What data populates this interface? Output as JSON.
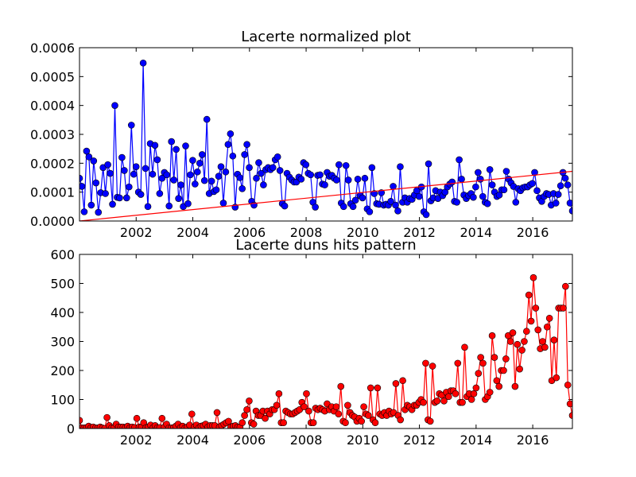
{
  "chart_data": [
    {
      "type": "line",
      "title": "Lacerte normalized plot",
      "xlabel": "",
      "ylabel": "",
      "xlim": [
        2000.0,
        2017.4
      ],
      "ylim": [
        0,
        0.0006
      ],
      "x_ticks": [
        "2002",
        "2004",
        "2006",
        "2008",
        "2010",
        "2012",
        "2014",
        "2016"
      ],
      "y_ticks": [
        "0.0000",
        "0.0001",
        "0.0002",
        "0.0003",
        "0.0004",
        "0.0005",
        "0.0006"
      ],
      "grid": false,
      "series": [
        {
          "color": "#0000ff",
          "marker": "circle",
          "values": [
            0.000148,
            0.00012,
            3.2e-05,
            0.000242,
            0.000222,
            5.5e-05,
            0.000208,
            0.000132,
            3e-05,
            9.8e-05,
            0.000185,
            9.5e-05,
            0.000195,
            0.000165,
            5.8e-05,
            0.0004,
            8.2e-05,
            8e-05,
            0.00022,
            0.000175,
            8e-05,
            0.000118,
            0.000332,
            0.000162,
            0.000188,
            0.0001,
            9.2e-05,
            0.000547,
            0.000182,
            5e-05,
            0.000268,
            0.000162,
            0.000262,
            0.000212,
            9.5e-05,
            0.000148,
            0.000168,
            0.00016,
            5.2e-05,
            0.000275,
            0.000142,
            0.000248,
            7.8e-05,
            0.000125,
            5e-05,
            0.00026,
            6e-05,
            0.00016,
            0.00021,
            0.000128,
            0.00017,
            0.0002,
            0.00023,
            0.00014,
            0.000352,
            9.5e-05,
            0.000138,
            0.000102,
            0.000108,
            0.000155,
            0.000188,
            6.2e-05,
            0.00017,
            0.000265,
            0.000302,
            0.000225,
            4.8e-05,
            0.000162,
            0.00015,
            0.000112,
            0.00023,
            0.000265,
            0.000185,
            6.8e-05,
            5.5e-05,
            0.000148,
            0.000202,
            0.000165,
            0.000125,
            0.000178,
            0.000185,
            0.000178,
            0.000185,
            0.000212,
            0.000222,
            0.000175,
            6e-05,
            5.2e-05,
            0.000165,
            0.000152,
            0.000142,
            0.000135,
            0.000135,
            0.000152,
            0.000145,
            0.000202,
            0.000195,
            0.000165,
            0.00016,
            6.5e-05,
            4.8e-05,
            0.000158,
            0.00016,
            0.000128,
            0.000125,
            0.000168,
            0.000155,
            0.000158,
            0.000148,
            0.000142,
            0.000195,
            6.2e-05,
            5e-05,
            0.000192,
            0.000142,
            6e-05,
            5e-05,
            7.2e-05,
            0.000145,
            8.8e-05,
            8e-05,
            0.000148,
            4.2e-05,
            3.2e-05,
            0.000185,
            9.5e-05,
            6e-05,
            5.8e-05,
            9.8e-05,
            5.5e-05,
            5.8e-05,
            5.5e-05,
            6.8e-05,
            0.00012,
            5.5e-05,
            3.5e-05,
            0.000188,
            6.5e-05,
            8e-05,
            6.5e-05,
            7.8e-05,
            7.5e-05,
            9e-05,
            0.000105,
            8.5e-05,
            0.000118,
            3.2e-05,
            2.2e-05,
            0.000198,
            7e-05,
            8e-05,
            0.000105,
            7.8e-05,
            0.0001,
            8.8e-05,
            0.0001,
            0.000118,
            0.000128,
            0.000135,
            6.8e-05,
            6.5e-05,
            0.000212,
            0.000145,
            9e-05,
            7.8e-05,
            8.8e-05,
            9.5e-05,
            8.2e-05,
            0.000118,
            0.000168,
            0.000145,
            8.5e-05,
            6.5e-05,
            6e-05,
            0.000178,
            0.000125,
            0.0001,
            8.5e-05,
            9e-05,
            0.000108,
            0.000108,
            0.000172,
            0.000145,
            0.000132,
            0.00012,
            6.5e-05,
            0.000112,
            0.000105,
            0.000115,
            0.000118,
            0.000118,
            0.000125,
            0.00013,
            0.000168,
            0.000105,
            8e-05,
            6.8e-05,
            8.5e-05,
            9.5e-05,
            9.2e-05,
            5.5e-05,
            9.5e-05,
            6.2e-05,
            9.2e-05,
            0.000122,
            0.000168,
            0.000148,
            0.000125,
            6.2e-05,
            3.5e-05
          ]
        },
        {
          "color": "#ff0000",
          "marker": "none",
          "x": [
            2000.0,
            2017.4
          ],
          "values": [
            0.0,
            0.000172
          ]
        }
      ]
    },
    {
      "type": "line",
      "title": "Lacerte duns hits pattern",
      "xlabel": "",
      "ylabel": "",
      "xlim": [
        2000.0,
        2017.4
      ],
      "ylim": [
        0,
        600
      ],
      "x_ticks": [
        "2002",
        "2004",
        "2006",
        "2008",
        "2010",
        "2012",
        "2014",
        "2016"
      ],
      "y_ticks": [
        "0",
        "100",
        "200",
        "300",
        "400",
        "500",
        "600"
      ],
      "grid": false,
      "series": [
        {
          "color": "#ff0000",
          "marker": "circle",
          "values": [
            28,
            2,
            2,
            3,
            8,
            3,
            5,
            2,
            2,
            5,
            2,
            0,
            38,
            10,
            2,
            2,
            15,
            5,
            5,
            5,
            3,
            8,
            3,
            5,
            3,
            35,
            5,
            5,
            20,
            3,
            5,
            12,
            2,
            10,
            3,
            3,
            35,
            5,
            15,
            2,
            2,
            3,
            8,
            15,
            3,
            8,
            2,
            5,
            12,
            50,
            5,
            12,
            2,
            8,
            10,
            15,
            5,
            10,
            10,
            10,
            55,
            5,
            10,
            15,
            20,
            25,
            5,
            8,
            10,
            5,
            5,
            20,
            45,
            65,
            95,
            20,
            15,
            60,
            45,
            45,
            60,
            35,
            60,
            50,
            65,
            65,
            80,
            120,
            20,
            20,
            60,
            55,
            50,
            50,
            55,
            60,
            65,
            90,
            75,
            120,
            60,
            20,
            20,
            70,
            65,
            70,
            65,
            60,
            85,
            65,
            75,
            60,
            75,
            50,
            145,
            25,
            20,
            80,
            55,
            45,
            40,
            25,
            35,
            25,
            75,
            50,
            45,
            140,
            30,
            20,
            140,
            50,
            45,
            55,
            45,
            60,
            50,
            55,
            155,
            45,
            30,
            165,
            65,
            80,
            75,
            65,
            80,
            80,
            90,
            100,
            90,
            225,
            30,
            25,
            215,
            90,
            95,
            120,
            115,
            95,
            125,
            110,
            130,
            130,
            120,
            225,
            90,
            90,
            280,
            110,
            120,
            100,
            120,
            140,
            190,
            245,
            225,
            100,
            110,
            125,
            320,
            245,
            165,
            145,
            200,
            200,
            240,
            320,
            300,
            330,
            145,
            290,
            205,
            270,
            300,
            335,
            460,
            370,
            520,
            415,
            340,
            275,
            300,
            280,
            350,
            380,
            165,
            305,
            175,
            415,
            415,
            415,
            490,
            150,
            85,
            45
          ]
        }
      ]
    }
  ]
}
